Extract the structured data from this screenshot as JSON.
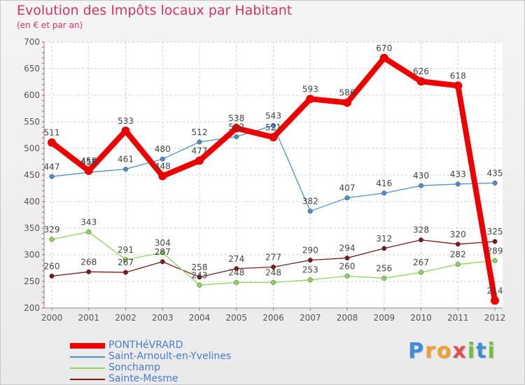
{
  "title": "Evolution des Impôts locaux par Habitant",
  "subtitle": "(en € et par an)",
  "logo": {
    "letters": [
      "P",
      "r",
      "o",
      "x",
      "i",
      "t",
      "i"
    ],
    "colors": [
      "#3b8fd8",
      "#f0a030",
      "#f0a030",
      "#e05050",
      "#70c040",
      "#3b8fd8",
      "#70c040"
    ]
  },
  "chart_data": {
    "type": "line",
    "title": "Evolution des Impôts locaux par Habitant",
    "subtitle": "(en € et par an)",
    "x": [
      "2000",
      "2001",
      "2002",
      "2003",
      "2004",
      "2005",
      "2006",
      "2007",
      "2008",
      "2009",
      "2010",
      "2011",
      "2012"
    ],
    "ylim": [
      200,
      700
    ],
    "yticks": [
      "200",
      "250",
      "300",
      "350",
      "400",
      "450",
      "500",
      "550",
      "600",
      "650",
      "700"
    ],
    "grid": true,
    "legend_position": "bottom-left",
    "series": [
      {
        "name": "PONTHéVRARD",
        "color": "#ee0000",
        "values": [
          511,
          458,
          533,
          448,
          477,
          538,
          521,
          593,
          586,
          670,
          626,
          618,
          214
        ],
        "labels": [
          "511",
          "458",
          "533",
          "448",
          "477",
          "538",
          "521",
          "593",
          "586",
          "670",
          "626",
          "618",
          "214"
        ]
      },
      {
        "name": "Saint-Arnoult-en-Yvelines",
        "color": "#4a90d0",
        "values": [
          447,
          455,
          461,
          480,
          512,
          522,
          543,
          382,
          407,
          416,
          430,
          433,
          435
        ],
        "labels": [
          "447",
          "455",
          "461",
          "480",
          "512",
          "522",
          "543",
          "382",
          "407",
          "416",
          "430",
          "433",
          "435"
        ]
      },
      {
        "name": "Sonchamp",
        "color": "#8cd65a",
        "values": [
          329,
          343,
          291,
          304,
          243,
          248,
          248,
          253,
          260,
          256,
          267,
          282,
          289
        ],
        "labels": [
          "329",
          "343",
          "291",
          "304",
          "243",
          "248",
          "248",
          "253",
          "260",
          "256",
          "267",
          "282",
          "289"
        ]
      },
      {
        "name": "Sainte-Mesme",
        "color": "#7a1a1a",
        "values": [
          260,
          268,
          267,
          287,
          258,
          274,
          277,
          290,
          294,
          312,
          328,
          320,
          325
        ],
        "labels": [
          "260",
          "268",
          "267",
          "287",
          "258",
          "274",
          "277",
          "290",
          "294",
          "312",
          "328",
          "320",
          "325"
        ]
      }
    ]
  }
}
